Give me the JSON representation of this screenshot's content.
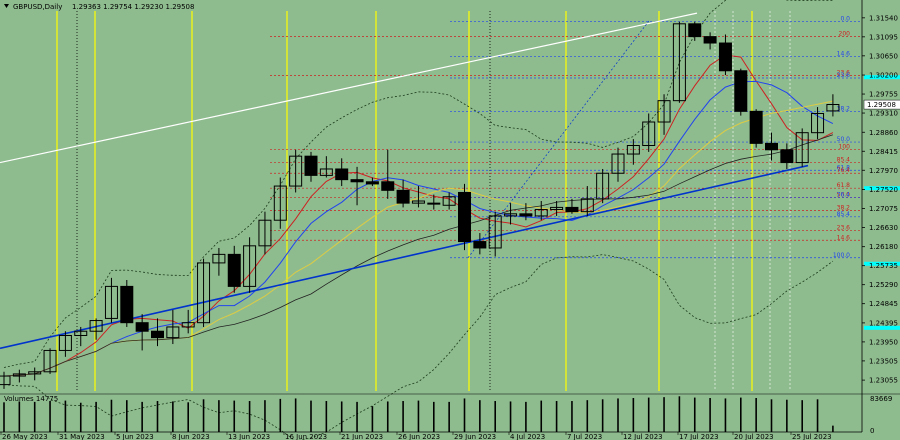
{
  "header": {
    "symbol": "GBPUSD,Daily",
    "ohlc": "1.29363 1.29754 1.29230 1.29508"
  },
  "colors": {
    "background": "#8fbc8f",
    "bull_candle": "#ffffff",
    "bear_candle": "#000000",
    "sma_red": "#cc2222",
    "sma_blue": "#2244ee",
    "sma_yellow": "#ddcc44",
    "sma_black": "#222222",
    "trend_blue": "#0033cc",
    "trend_white": "#ffffff",
    "vline_yellow": "#ffff00",
    "price_tag": "#ffffff",
    "cyan_marker": "#00ffff"
  },
  "chart_data": {
    "type": "candlestick",
    "price_scale": [
      "1.31540",
      "1.31095",
      "1.30650",
      "1.30200",
      "1.29755",
      "1.29310",
      "1.28860",
      "1.28415",
      "1.27970",
      "1.27520",
      "1.27075",
      "1.26630",
      "1.26180",
      "1.25735",
      "1.25290",
      "1.24845",
      "1.24395",
      "1.23950",
      "1.23505",
      "1.23055"
    ],
    "current_price": "1.29508",
    "date_labels": [
      "26 May 2023",
      "31 May 2023",
      "5 Jun 2023",
      "8 Jun 2023",
      "13 Jun 2023",
      "16 Jun 2023",
      "21 Jun 2023",
      "26 Jun 2023",
      "29 Jun 2023",
      "4 Jul 2023",
      "7 Jul 2023",
      "12 Jul 2023",
      "17 Jul 2023",
      "20 Jul 2023",
      "25 Jul 2023"
    ],
    "ylim": [
      1.228,
      1.317
    ],
    "candles": [
      {
        "o": 1.2295,
        "h": 1.2325,
        "l": 1.2285,
        "c": 1.2315
      },
      {
        "o": 1.2315,
        "h": 1.233,
        "l": 1.23,
        "c": 1.232
      },
      {
        "o": 1.232,
        "h": 1.2335,
        "l": 1.2305,
        "c": 1.2325
      },
      {
        "o": 1.2325,
        "h": 1.238,
        "l": 1.232,
        "c": 1.2375
      },
      {
        "o": 1.2375,
        "h": 1.242,
        "l": 1.236,
        "c": 1.241
      },
      {
        "o": 1.241,
        "h": 1.243,
        "l": 1.2385,
        "c": 1.242
      },
      {
        "o": 1.242,
        "h": 1.245,
        "l": 1.24,
        "c": 1.2445
      },
      {
        "o": 1.245,
        "h": 1.2545,
        "l": 1.244,
        "c": 1.2525
      },
      {
        "o": 1.2525,
        "h": 1.254,
        "l": 1.243,
        "c": 1.244
      },
      {
        "o": 1.244,
        "h": 1.246,
        "l": 1.2375,
        "c": 1.242
      },
      {
        "o": 1.242,
        "h": 1.245,
        "l": 1.2385,
        "c": 1.2405
      },
      {
        "o": 1.2405,
        "h": 1.247,
        "l": 1.239,
        "c": 1.243
      },
      {
        "o": 1.243,
        "h": 1.247,
        "l": 1.2415,
        "c": 1.244
      },
      {
        "o": 1.244,
        "h": 1.259,
        "l": 1.243,
        "c": 1.258
      },
      {
        "o": 1.258,
        "h": 1.2615,
        "l": 1.255,
        "c": 1.26
      },
      {
        "o": 1.26,
        "h": 1.262,
        "l": 1.251,
        "c": 1.2525
      },
      {
        "o": 1.2525,
        "h": 1.264,
        "l": 1.251,
        "c": 1.262
      },
      {
        "o": 1.262,
        "h": 1.27,
        "l": 1.26,
        "c": 1.268
      },
      {
        "o": 1.268,
        "h": 1.278,
        "l": 1.266,
        "c": 1.276
      },
      {
        "o": 1.276,
        "h": 1.2845,
        "l": 1.2745,
        "c": 1.283
      },
      {
        "o": 1.283,
        "h": 1.284,
        "l": 1.277,
        "c": 1.2785
      },
      {
        "o": 1.2785,
        "h": 1.283,
        "l": 1.278,
        "c": 1.28
      },
      {
        "o": 1.28,
        "h": 1.2825,
        "l": 1.276,
        "c": 1.2775
      },
      {
        "o": 1.2775,
        "h": 1.2805,
        "l": 1.2715,
        "c": 1.277
      },
      {
        "o": 1.277,
        "h": 1.278,
        "l": 1.276,
        "c": 1.2765
      },
      {
        "o": 1.277,
        "h": 1.2845,
        "l": 1.273,
        "c": 1.275
      },
      {
        "o": 1.275,
        "h": 1.2775,
        "l": 1.271,
        "c": 1.272
      },
      {
        "o": 1.272,
        "h": 1.276,
        "l": 1.271,
        "c": 1.2725
      },
      {
        "o": 1.272,
        "h": 1.274,
        "l": 1.2705,
        "c": 1.272
      },
      {
        "o": 1.2715,
        "h": 1.2745,
        "l": 1.2705,
        "c": 1.2735
      },
      {
        "o": 1.2745,
        "h": 1.2765,
        "l": 1.261,
        "c": 1.263
      },
      {
        "o": 1.263,
        "h": 1.265,
        "l": 1.26,
        "c": 1.2615
      },
      {
        "o": 1.2615,
        "h": 1.27,
        "l": 1.2595,
        "c": 1.269
      },
      {
        "o": 1.269,
        "h": 1.272,
        "l": 1.267,
        "c": 1.2695
      },
      {
        "o": 1.2695,
        "h": 1.272,
        "l": 1.268,
        "c": 1.269
      },
      {
        "o": 1.269,
        "h": 1.2725,
        "l": 1.268,
        "c": 1.2705
      },
      {
        "o": 1.2705,
        "h": 1.2725,
        "l": 1.269,
        "c": 1.271
      },
      {
        "o": 1.271,
        "h": 1.273,
        "l": 1.2695,
        "c": 1.27
      },
      {
        "o": 1.27,
        "h": 1.276,
        "l": 1.269,
        "c": 1.273
      },
      {
        "o": 1.273,
        "h": 1.28,
        "l": 1.272,
        "c": 1.279
      },
      {
        "o": 1.279,
        "h": 1.285,
        "l": 1.277,
        "c": 1.2835
      },
      {
        "o": 1.2835,
        "h": 1.287,
        "l": 1.281,
        "c": 1.2855
      },
      {
        "o": 1.2855,
        "h": 1.293,
        "l": 1.284,
        "c": 1.291
      },
      {
        "o": 1.291,
        "h": 1.2975,
        "l": 1.288,
        "c": 1.296
      },
      {
        "o": 1.296,
        "h": 1.3145,
        "l": 1.2955,
        "c": 1.314
      },
      {
        "o": 1.314,
        "h": 1.3145,
        "l": 1.31,
        "c": 1.311
      },
      {
        "o": 1.311,
        "h": 1.312,
        "l": 1.308,
        "c": 1.3095
      },
      {
        "o": 1.3095,
        "h": 1.3115,
        "l": 1.302,
        "c": 1.303
      },
      {
        "o": 1.303,
        "h": 1.3035,
        "l": 1.2925,
        "c": 1.2935
      },
      {
        "o": 1.2935,
        "h": 1.294,
        "l": 1.285,
        "c": 1.286
      },
      {
        "o": 1.286,
        "h": 1.2885,
        "l": 1.282,
        "c": 1.2845
      },
      {
        "o": 1.2845,
        "h": 1.286,
        "l": 1.28,
        "c": 1.2815
      },
      {
        "o": 1.2815,
        "h": 1.2895,
        "l": 1.2805,
        "c": 1.2885
      },
      {
        "o": 1.2885,
        "h": 1.2945,
        "l": 1.287,
        "c": 1.293
      },
      {
        "o": 1.2936,
        "h": 1.2975,
        "l": 1.2923,
        "c": 1.2951
      }
    ],
    "volumes_label": "Volumes 14775",
    "volume_scale": [
      "83669",
      "0"
    ],
    "volume_max": 83669,
    "volumes": [
      69000,
      71000,
      70000,
      72000,
      73000,
      68000,
      70000,
      75000,
      74000,
      70000,
      72000,
      71000,
      69000,
      76000,
      74000,
      73000,
      72000,
      74000,
      77000,
      78000,
      73000,
      72000,
      71000,
      70000,
      60000,
      71000,
      72000,
      73000,
      70000,
      70000,
      78000,
      74000,
      72000,
      71000,
      70000,
      73000,
      72000,
      72000,
      74000,
      76000,
      78000,
      79000,
      80000,
      81000,
      83000,
      80000,
      79000,
      78000,
      80000,
      79000,
      76000,
      75000,
      74000,
      76000,
      14775
    ],
    "fib_levels": [
      {
        "label": "0.0",
        "price": 1.3145,
        "color": "#2244ee"
      },
      {
        "label": "200",
        "price": 1.311,
        "color": "#cc2222"
      },
      {
        "label": "14.6",
        "price": 1.3063,
        "color": "#2244ee"
      },
      {
        "label": "23.6",
        "price": 1.3019,
        "color": "#cc2222"
      },
      {
        "label": "23.6",
        "price": 1.3013,
        "color": "#2244ee"
      },
      {
        "label": "38.2",
        "price": 1.2935,
        "color": "#2244ee"
      },
      {
        "label": "50.0",
        "price": 1.2863,
        "color": "#2244ee"
      },
      {
        "label": "100",
        "price": 1.2846,
        "color": "#cc2222"
      },
      {
        "label": "61.8",
        "price": 1.2797,
        "color": "#2244ee"
      },
      {
        "label": "85.4",
        "price": 1.2815,
        "color": "#cc2222"
      },
      {
        "label": "76.4",
        "price": 1.279,
        "color": "#cc2222"
      },
      {
        "label": "61.8",
        "price": 1.2755,
        "color": "#cc2222"
      },
      {
        "label": "50.0",
        "price": 1.2733,
        "color": "#cc2222"
      },
      {
        "label": "76.4",
        "price": 1.2733,
        "color": "#2244ee"
      },
      {
        "label": "38.2",
        "price": 1.2703,
        "color": "#cc2222"
      },
      {
        "label": "85.4",
        "price": 1.2688,
        "color": "#2244ee"
      },
      {
        "label": "23.6",
        "price": 1.2656,
        "color": "#cc2222"
      },
      {
        "label": "14.6",
        "price": 1.2633,
        "color": "#cc2222"
      },
      {
        "label": "100.0",
        "price": 1.2592,
        "color": "#2244ee"
      }
    ]
  }
}
